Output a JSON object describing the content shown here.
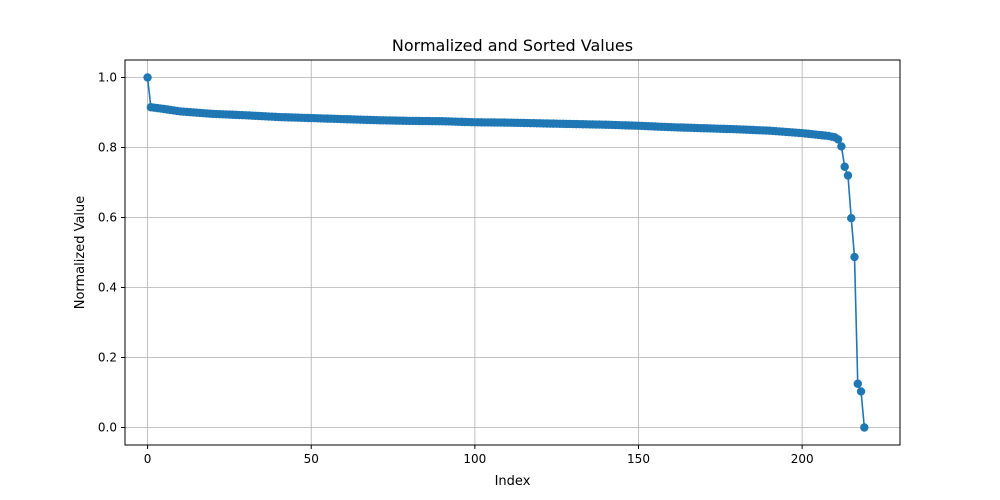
{
  "chart_data": {
    "type": "line",
    "title": "Normalized and Sorted Values",
    "xlabel": "Index",
    "ylabel": "Normalized Value",
    "xlim": [
      -6.9,
      229.9
    ],
    "ylim": [
      -0.05,
      1.05
    ],
    "xticks": [
      0,
      50,
      100,
      150,
      200
    ],
    "yticks": [
      0.0,
      0.2,
      0.4,
      0.6,
      0.8,
      1.0
    ],
    "grid": true,
    "marker": "circle",
    "series_color": "#1f77b4",
    "series": [
      {
        "anchors": [
          [
            0,
            1.0
          ],
          [
            1,
            0.915
          ],
          [
            5,
            0.91
          ],
          [
            10,
            0.903
          ],
          [
            20,
            0.896
          ],
          [
            30,
            0.892
          ],
          [
            40,
            0.887
          ],
          [
            50,
            0.884
          ],
          [
            60,
            0.881
          ],
          [
            70,
            0.878
          ],
          [
            80,
            0.876
          ],
          [
            90,
            0.875
          ],
          [
            100,
            0.872
          ],
          [
            110,
            0.871
          ],
          [
            120,
            0.869
          ],
          [
            130,
            0.867
          ],
          [
            140,
            0.865
          ],
          [
            150,
            0.862
          ],
          [
            160,
            0.858
          ],
          [
            170,
            0.855
          ],
          [
            180,
            0.852
          ],
          [
            190,
            0.848
          ],
          [
            200,
            0.841
          ],
          [
            205,
            0.836
          ],
          [
            208,
            0.833
          ],
          [
            210,
            0.829
          ],
          [
            211,
            0.823
          ],
          [
            212,
            0.803
          ],
          [
            213,
            0.745
          ],
          [
            214,
            0.72
          ],
          [
            215,
            0.598
          ],
          [
            216,
            0.487
          ],
          [
            217,
            0.125
          ],
          [
            218,
            0.103
          ],
          [
            219,
            0.0
          ]
        ]
      }
    ]
  }
}
